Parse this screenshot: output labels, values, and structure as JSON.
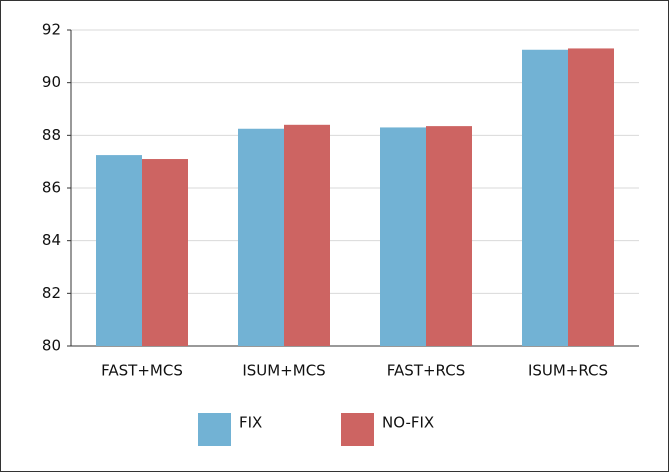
{
  "chart_data": {
    "type": "bar",
    "categories": [
      "FAST+MCS",
      "ISUM+MCS",
      "FAST+RCS",
      "ISUM+RCS"
    ],
    "series": [
      {
        "name": "FIX",
        "color": "#72b2d4",
        "values": [
          87.25,
          88.25,
          88.3,
          91.25
        ]
      },
      {
        "name": "NO-FIX",
        "color": "#cd6462",
        "values": [
          87.1,
          88.4,
          88.35,
          91.3
        ]
      }
    ],
    "ylim": [
      80,
      92
    ],
    "yticks": [
      80,
      82,
      84,
      86,
      88,
      90,
      92
    ],
    "grid": true,
    "legend": "bottom"
  }
}
